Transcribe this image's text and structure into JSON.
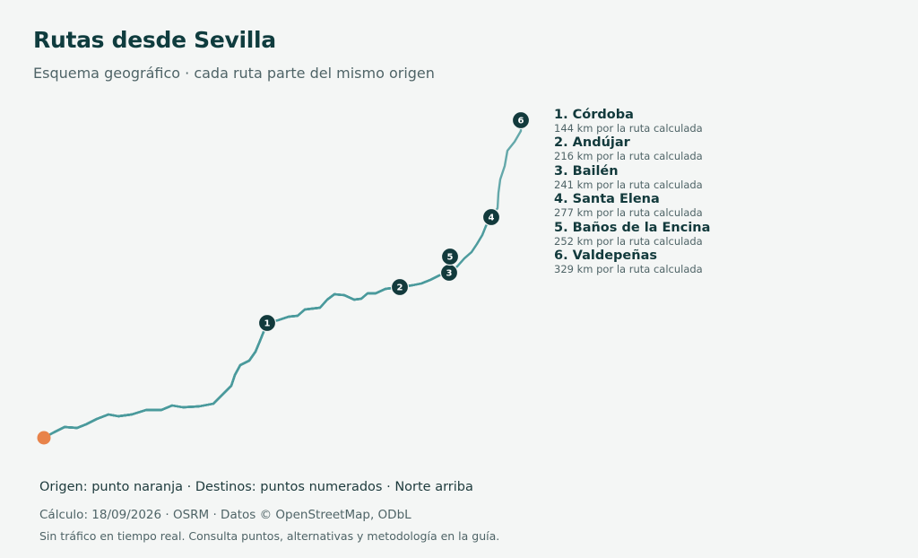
{
  "header": {
    "title": "Rutas desde Sevilla",
    "subtitle": "Esquema geográfico · cada ruta parte del mismo origen"
  },
  "map": {
    "origin_color": "#e8834a",
    "route_color": "#4a9a9c",
    "marker_color": "#123a3c",
    "destinations": [
      {
        "number": "1",
        "label": "1. Córdoba",
        "distance": "144 km por la ruta calculada"
      },
      {
        "number": "2",
        "label": "2. Andújar",
        "distance": "216 km por la ruta calculada"
      },
      {
        "number": "3",
        "label": "3. Bailén",
        "distance": "241 km por la ruta calculada"
      },
      {
        "number": "4",
        "label": "4. Santa Elena",
        "distance": "277 km por la ruta calculada"
      },
      {
        "number": "5",
        "label": "5. Baños de la Encina",
        "distance": "252 km por la ruta calculada"
      },
      {
        "number": "6",
        "label": "6. Valdepeñas",
        "distance": "329 km por la ruta calculada"
      }
    ]
  },
  "footer": {
    "key": "Origen: punto naranja · Destinos: puntos numerados · Norte arriba",
    "calc": "Cálculo: 18/09/2026 · OSRM · Datos © OpenStreetMap, ODbL",
    "note": "Sin tráfico en tiempo real. Consulta puntos, alternativas y metodología en la guía."
  }
}
